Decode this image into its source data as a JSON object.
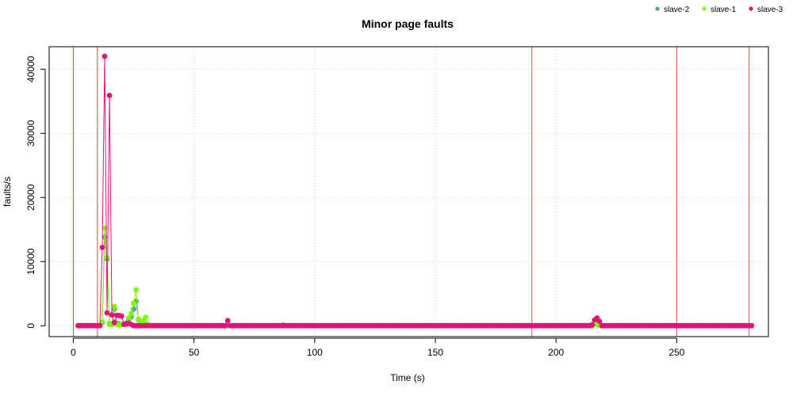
{
  "chart_data": {
    "type": "line",
    "title": "Minor page faults",
    "xlabel": "Time (s)",
    "ylabel": "faults/s",
    "xlim": [
      -10,
      288
    ],
    "ylim": [
      -1700,
      43500
    ],
    "x_ticks": [
      0,
      50,
      100,
      150,
      200,
      250
    ],
    "y_ticks": [
      0,
      10000,
      20000,
      30000,
      40000
    ],
    "grid": true,
    "legend_position": "top-right",
    "event_lines_x": [
      0,
      10,
      190,
      250,
      280
    ],
    "event_line_color": "#e8453c",
    "series": [
      {
        "name": "slave-2",
        "color": "#5f9ea0",
        "x0": 2,
        "x1": 281,
        "baseline": 0,
        "points": [
          [
            12,
            500
          ],
          [
            13,
            13800
          ],
          [
            14,
            10400
          ],
          [
            15,
            300
          ],
          [
            16,
            200
          ],
          [
            17,
            2600
          ],
          [
            18,
            400
          ],
          [
            19,
            300
          ],
          [
            20,
            200
          ],
          [
            21,
            300
          ],
          [
            22,
            400
          ],
          [
            23,
            1000
          ],
          [
            24,
            1400
          ],
          [
            25,
            2600
          ],
          [
            26,
            3800
          ],
          [
            27,
            900
          ],
          [
            28,
            400
          ],
          [
            29,
            300
          ],
          [
            30,
            200
          ],
          [
            87,
            100
          ],
          [
            215,
            200
          ],
          [
            216,
            500
          ],
          [
            217,
            400
          ],
          [
            218,
            100
          ]
        ]
      },
      {
        "name": "slave-1",
        "color": "#7cfc00",
        "x0": 2,
        "x1": 281,
        "baseline": 0,
        "points": [
          [
            12,
            600
          ],
          [
            13,
            15200
          ],
          [
            14,
            10600
          ],
          [
            15,
            200
          ],
          [
            16,
            300
          ],
          [
            17,
            3000
          ],
          [
            18,
            200
          ],
          [
            19,
            100
          ],
          [
            20,
            200
          ],
          [
            21,
            300
          ],
          [
            22,
            200
          ],
          [
            23,
            1200
          ],
          [
            24,
            1900
          ],
          [
            25,
            3500
          ],
          [
            26,
            5600
          ],
          [
            27,
            1000
          ],
          [
            28,
            600
          ],
          [
            29,
            800
          ],
          [
            30,
            1300
          ],
          [
            31,
            200
          ],
          [
            216,
            300
          ],
          [
            217,
            200
          ],
          [
            218,
            100
          ]
        ]
      },
      {
        "name": "slave-3",
        "color": "#e3127a",
        "x0": 2,
        "x1": 281,
        "baseline": 0,
        "points": [
          [
            12,
            12200
          ],
          [
            13,
            42000
          ],
          [
            14,
            2000
          ],
          [
            15,
            35900
          ],
          [
            16,
            1700
          ],
          [
            17,
            500
          ],
          [
            18,
            1600
          ],
          [
            19,
            1600
          ],
          [
            20,
            1500
          ],
          [
            21,
            200
          ],
          [
            22,
            300
          ],
          [
            23,
            400
          ],
          [
            24,
            200
          ],
          [
            64,
            800
          ],
          [
            215,
            100
          ],
          [
            216,
            900
          ],
          [
            217,
            1200
          ],
          [
            218,
            700
          ]
        ]
      }
    ]
  }
}
